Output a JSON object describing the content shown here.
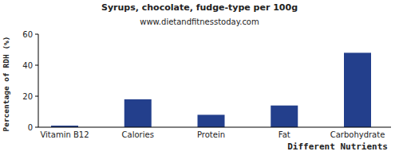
{
  "chart_data": {
    "type": "bar",
    "title": "Syrups, chocolate, fudge-type per 100g",
    "subtitle": "www.dietandfitnesstoday.com",
    "x_label": "Different Nutrients",
    "y_label": "Percentage of RDH (%)",
    "categories": [
      "Vitamin B12",
      "Calories",
      "Protein",
      "Fat",
      "Carbohydrate"
    ],
    "values": [
      1,
      18,
      8,
      14,
      48
    ],
    "color": "#233f8c",
    "ylim": [
      0,
      60
    ],
    "yticks": [
      0,
      20,
      40,
      60
    ],
    "grid": false
  }
}
